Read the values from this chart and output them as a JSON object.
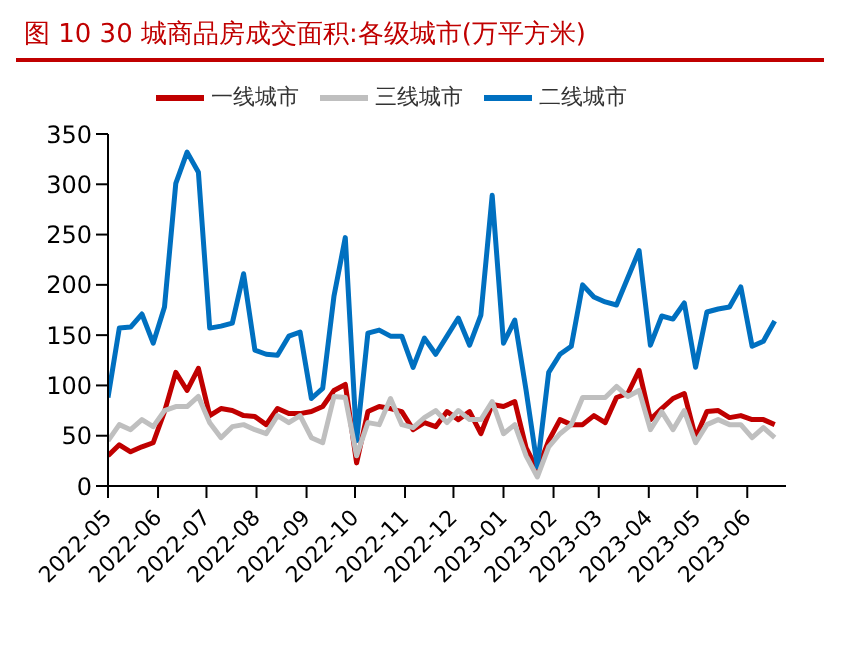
{
  "chart_data": {
    "type": "line",
    "title": "图 10  30 城商品房成交面积:各级城市(万平方米)",
    "x": [
      "2022-05-01",
      "2022-05-08",
      "2022-05-15",
      "2022-05-22",
      "2022-05-29",
      "2022-06-05",
      "2022-06-12",
      "2022-06-19",
      "2022-06-26",
      "2022-07-03",
      "2022-07-10",
      "2022-07-17",
      "2022-07-24",
      "2022-07-31",
      "2022-08-07",
      "2022-08-14",
      "2022-08-21",
      "2022-08-28",
      "2022-09-04",
      "2022-09-11",
      "2022-09-18",
      "2022-09-25",
      "2022-10-02",
      "2022-10-09",
      "2022-10-16",
      "2022-10-23",
      "2022-10-30",
      "2022-11-06",
      "2022-11-13",
      "2022-11-20",
      "2022-11-27",
      "2022-12-04",
      "2022-12-11",
      "2022-12-18",
      "2022-12-25",
      "2023-01-01",
      "2023-01-08",
      "2023-01-15",
      "2023-01-22",
      "2023-01-29",
      "2023-02-05",
      "2023-02-12",
      "2023-02-19",
      "2023-02-26",
      "2023-03-05",
      "2023-03-12",
      "2023-03-19",
      "2023-03-26",
      "2023-04-02",
      "2023-04-09",
      "2023-04-16",
      "2023-04-23",
      "2023-04-30",
      "2023-05-07",
      "2023-05-14",
      "2023-05-21",
      "2023-05-28",
      "2023-06-04",
      "2023-06-11",
      "2023-06-18"
    ],
    "series": [
      {
        "name": "一线城市",
        "color": "#c00000",
        "values": [
          30,
          41,
          34,
          39,
          43,
          74,
          113,
          95,
          117,
          70,
          77,
          75,
          70,
          69,
          61,
          77,
          72,
          72,
          74,
          79,
          95,
          101,
          23,
          74,
          79,
          77,
          74,
          56,
          63,
          59,
          74,
          66,
          74,
          52,
          81,
          79,
          84,
          38,
          16,
          45,
          66,
          61,
          61,
          70,
          63,
          88,
          92,
          115,
          66,
          77,
          87,
          92,
          48,
          74,
          75,
          68,
          70,
          66,
          66,
          61
        ]
      },
      {
        "name": "二线城市",
        "color": "#0070c0",
        "values": [
          88,
          157,
          158,
          171,
          142,
          178,
          301,
          332,
          312,
          157,
          159,
          162,
          211,
          135,
          131,
          130,
          149,
          153,
          87,
          97,
          189,
          247,
          45,
          152,
          155,
          149,
          149,
          118,
          147,
          131,
          149,
          167,
          140,
          170,
          289,
          142,
          165,
          95,
          19,
          113,
          131,
          139,
          200,
          188,
          183,
          180,
          207,
          234,
          140,
          169,
          166,
          182,
          118,
          173,
          176,
          178,
          198,
          139,
          144,
          164
        ]
      },
      {
        "name": "三线城市",
        "color": "#bfbfbf",
        "values": [
          45,
          61,
          56,
          66,
          59,
          75,
          79,
          79,
          89,
          63,
          48,
          59,
          61,
          56,
          52,
          70,
          63,
          70,
          48,
          43,
          89,
          88,
          30,
          63,
          61,
          87,
          61,
          58,
          68,
          75,
          63,
          75,
          66,
          66,
          84,
          52,
          61,
          30,
          9,
          39,
          52,
          61,
          88,
          88,
          88,
          99,
          89,
          95,
          56,
          74,
          56,
          75,
          43,
          61,
          66,
          61,
          61,
          48,
          58,
          48
        ]
      }
    ],
    "xlim": [
      "2022-05-01",
      "2023-06-25"
    ],
    "xticks": [
      "2022-05",
      "2022-06",
      "2022-07",
      "2022-08",
      "2022-09",
      "2022-10",
      "2022-11",
      "2022-12",
      "2023-01",
      "2023-02",
      "2023-03",
      "2023-04",
      "2023-05",
      "2023-06"
    ],
    "ylim": [
      0,
      350
    ],
    "yticks": [
      0,
      50,
      100,
      150,
      200,
      250,
      300,
      350
    ],
    "grid": false,
    "legend": "top",
    "marker": "none",
    "line_style": "solid"
  }
}
